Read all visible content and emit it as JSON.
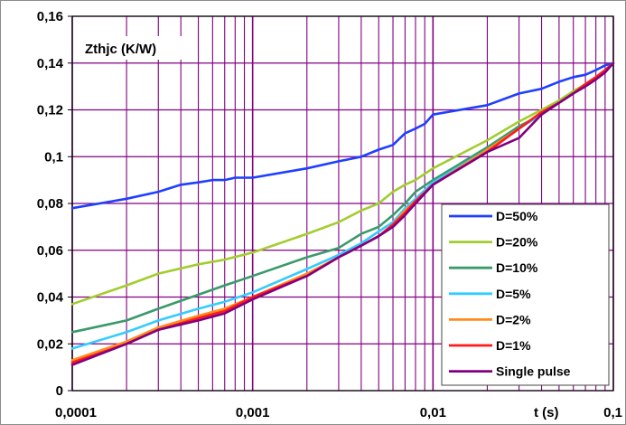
{
  "chart_data": {
    "type": "line",
    "title": "",
    "ylabel": "Zthjc (K/W)",
    "xlabel": "t (s)",
    "x_scale": "log",
    "xlim": [
      0.0001,
      0.1
    ],
    "ylim": [
      0,
      0.16
    ],
    "x_ticks": [
      "0,0001",
      "0,001",
      "0,01",
      "0,1"
    ],
    "y_ticks": [
      "0",
      "0,02",
      "0,04",
      "0,06",
      "0,08",
      "0,1",
      "0,12",
      "0,14",
      "0,16"
    ],
    "grid": true,
    "legend_position": "bottom-right",
    "colors": {
      "grid": "#800080",
      "background": "#ffffff"
    },
    "series": [
      {
        "name": "D=50%",
        "color": "#1f3fff",
        "x": [
          0.0001,
          0.0002,
          0.0003,
          0.0004,
          0.0005,
          0.0006,
          0.0007,
          0.0008,
          0.0009,
          0.001,
          0.002,
          0.003,
          0.004,
          0.005,
          0.006,
          0.007,
          0.008,
          0.009,
          0.01,
          0.02,
          0.03,
          0.04,
          0.05,
          0.06,
          0.07,
          0.08,
          0.09,
          0.1
        ],
        "y": [
          0.078,
          0.082,
          0.085,
          0.088,
          0.089,
          0.09,
          0.09,
          0.091,
          0.091,
          0.091,
          0.095,
          0.098,
          0.1,
          0.103,
          0.105,
          0.11,
          0.112,
          0.114,
          0.118,
          0.122,
          0.127,
          0.129,
          0.132,
          0.134,
          0.135,
          0.137,
          0.139,
          0.14
        ]
      },
      {
        "name": "D=20%",
        "color": "#a2cd2e",
        "x": [
          0.0001,
          0.0002,
          0.0003,
          0.0005,
          0.0007,
          0.001,
          0.002,
          0.003,
          0.004,
          0.005,
          0.006,
          0.007,
          0.008,
          0.01,
          0.02,
          0.03,
          0.04,
          0.05,
          0.06,
          0.07,
          0.08,
          0.09,
          0.1
        ],
        "y": [
          0.037,
          0.045,
          0.05,
          0.054,
          0.056,
          0.059,
          0.067,
          0.072,
          0.077,
          0.08,
          0.085,
          0.088,
          0.09,
          0.095,
          0.107,
          0.115,
          0.12,
          0.124,
          0.128,
          0.131,
          0.134,
          0.137,
          0.14
        ]
      },
      {
        "name": "D=10%",
        "color": "#3a9a6a",
        "x": [
          0.0001,
          0.0002,
          0.0003,
          0.0005,
          0.0007,
          0.001,
          0.002,
          0.003,
          0.004,
          0.005,
          0.006,
          0.007,
          0.008,
          0.01,
          0.02,
          0.03,
          0.04,
          0.05,
          0.06,
          0.07,
          0.08,
          0.09,
          0.1
        ],
        "y": [
          0.025,
          0.03,
          0.035,
          0.041,
          0.045,
          0.049,
          0.057,
          0.061,
          0.067,
          0.07,
          0.075,
          0.08,
          0.085,
          0.09,
          0.104,
          0.113,
          0.118,
          0.123,
          0.127,
          0.131,
          0.134,
          0.137,
          0.14
        ]
      },
      {
        "name": "D=5%",
        "color": "#33ccff",
        "x": [
          0.0001,
          0.0002,
          0.0003,
          0.0005,
          0.0007,
          0.001,
          0.002,
          0.003,
          0.004,
          0.005,
          0.006,
          0.007,
          0.008,
          0.01,
          0.02,
          0.03,
          0.04,
          0.05,
          0.06,
          0.07,
          0.08,
          0.09,
          0.1
        ],
        "y": [
          0.018,
          0.025,
          0.03,
          0.035,
          0.038,
          0.042,
          0.052,
          0.058,
          0.063,
          0.068,
          0.072,
          0.078,
          0.082,
          0.089,
          0.103,
          0.112,
          0.118,
          0.123,
          0.127,
          0.131,
          0.134,
          0.137,
          0.14
        ]
      },
      {
        "name": "D=2%",
        "color": "#ff8c1a",
        "x": [
          0.0001,
          0.0002,
          0.0003,
          0.0005,
          0.0007,
          0.001,
          0.002,
          0.003,
          0.004,
          0.005,
          0.006,
          0.007,
          0.008,
          0.01,
          0.02,
          0.03,
          0.04,
          0.05,
          0.06,
          0.07,
          0.08,
          0.09,
          0.1
        ],
        "y": [
          0.013,
          0.021,
          0.027,
          0.032,
          0.035,
          0.04,
          0.05,
          0.057,
          0.062,
          0.066,
          0.071,
          0.077,
          0.081,
          0.088,
          0.103,
          0.112,
          0.119,
          0.123,
          0.127,
          0.131,
          0.134,
          0.137,
          0.14
        ]
      },
      {
        "name": "D=1%",
        "color": "#ff1a1a",
        "x": [
          0.0001,
          0.0002,
          0.0003,
          0.0005,
          0.0007,
          0.001,
          0.002,
          0.003,
          0.004,
          0.005,
          0.006,
          0.007,
          0.008,
          0.01,
          0.02,
          0.03,
          0.04,
          0.05,
          0.06,
          0.07,
          0.08,
          0.09,
          0.1
        ],
        "y": [
          0.012,
          0.02,
          0.026,
          0.031,
          0.034,
          0.04,
          0.049,
          0.057,
          0.062,
          0.066,
          0.071,
          0.076,
          0.081,
          0.088,
          0.102,
          0.112,
          0.119,
          0.123,
          0.127,
          0.131,
          0.134,
          0.137,
          0.14
        ]
      },
      {
        "name": "Single pulse",
        "color": "#800080",
        "x": [
          0.0001,
          0.0002,
          0.0003,
          0.0005,
          0.0007,
          0.001,
          0.002,
          0.003,
          0.004,
          0.005,
          0.006,
          0.007,
          0.008,
          0.01,
          0.02,
          0.03,
          0.04,
          0.05,
          0.06,
          0.07,
          0.08,
          0.09,
          0.1
        ],
        "y": [
          0.011,
          0.02,
          0.026,
          0.03,
          0.033,
          0.039,
          0.049,
          0.057,
          0.062,
          0.066,
          0.07,
          0.075,
          0.08,
          0.088,
          0.102,
          0.108,
          0.118,
          0.123,
          0.127,
          0.13,
          0.133,
          0.136,
          0.14
        ]
      }
    ]
  }
}
